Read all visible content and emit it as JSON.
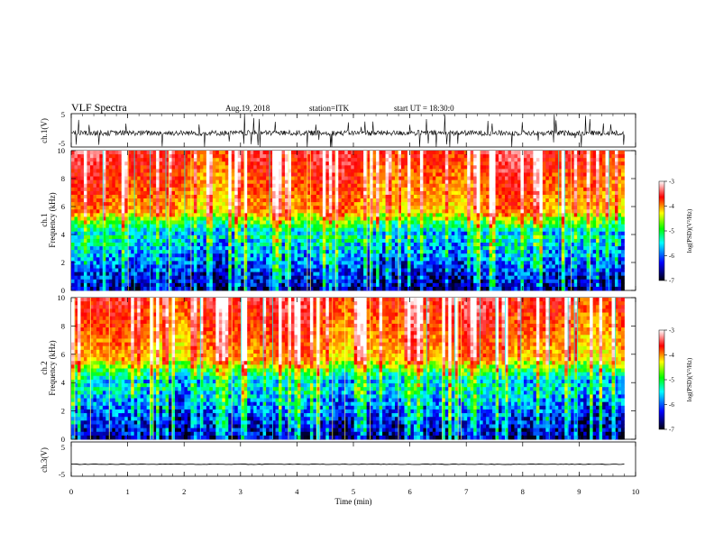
{
  "header": {
    "title": "VLF Spectra",
    "date": "Aug.19, 2018",
    "station": "station=ITK",
    "start": "start UT = 18:30:0"
  },
  "colors": {
    "colormap": [
      "#000010",
      "#0000ff",
      "#00ffff",
      "#00ff00",
      "#ffff00",
      "#ff0000",
      "#ffffff"
    ],
    "trace": "#000000"
  },
  "chart_data": [
    {
      "type": "line",
      "panel": "ch1-waveform",
      "ylabel": "ch.1(V)",
      "ylim": [
        -5,
        5
      ],
      "yticks": [
        "5",
        "-5"
      ],
      "xlim": [
        0,
        10
      ],
      "series": [
        {
          "values_note": "noisy waveform near -1 V with frequent spikes"
        }
      ]
    },
    {
      "type": "heatmap",
      "panel": "ch1-spectrogram",
      "ylabel_top": "ch.1",
      "ylabel": "Frequency (kHz)",
      "ylim": [
        0,
        10
      ],
      "yticks": [
        "0",
        "2",
        "4",
        "6",
        "8",
        "10"
      ],
      "xlim": [
        0,
        9.8
      ],
      "colorbar": {
        "label": "log(PSD)(V²/Hz)",
        "range": [
          -7,
          -3
        ],
        "ticks": [
          "-3",
          "-4",
          "-5",
          "-6",
          "-7"
        ]
      }
    },
    {
      "type": "heatmap",
      "panel": "ch2-spectrogram",
      "ylabel_top": "ch.2",
      "ylabel": "Frequency (kHz)",
      "ylim": [
        0,
        10
      ],
      "yticks": [
        "0",
        "2",
        "4",
        "6",
        "8",
        "10"
      ],
      "xlim": [
        0,
        9.8
      ],
      "colorbar": {
        "label": "log(PSD)(V²/Hz)",
        "range": [
          -7,
          -3
        ],
        "ticks": [
          "-3",
          "-4",
          "-5",
          "-6",
          "-7"
        ]
      }
    },
    {
      "type": "line",
      "panel": "ch3-waveform",
      "ylabel": "ch.3(V)",
      "ylim": [
        -5,
        5
      ],
      "yticks": [
        "5",
        "-5"
      ],
      "xlim": [
        0,
        10
      ],
      "series": [
        {
          "values_note": "flat trace near -1.5 V"
        }
      ]
    }
  ],
  "xaxis": {
    "label": "Time (min)",
    "ticks": [
      "0",
      "1",
      "2",
      "3",
      "4",
      "5",
      "6",
      "7",
      "8",
      "9",
      "10"
    ],
    "range": [
      0,
      10
    ]
  }
}
